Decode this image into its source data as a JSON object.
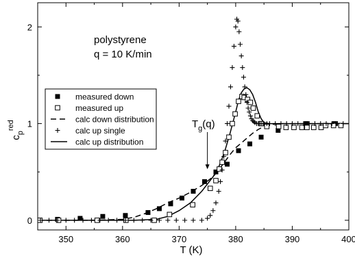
{
  "chart_data": {
    "type": "scatter",
    "title": "",
    "annotation": {
      "line1": "polystyrene",
      "line2": "q = 10 K/min"
    },
    "marker_label": {
      "main": "T",
      "sub": "g",
      "rest": "(q)",
      "x": 375,
      "y": 0.5
    },
    "xlabel": "T (K)",
    "ylabel": {
      "main": "c",
      "sub": "p",
      "sup": "red"
    },
    "xlim": [
      345,
      400
    ],
    "ylim": [
      -0.1,
      2.25
    ],
    "xticks": [
      350,
      360,
      370,
      380,
      390,
      400
    ],
    "yticks": [
      0,
      1,
      2
    ],
    "grid": false,
    "legend_position": "middle-left",
    "series": [
      {
        "name": "measured down",
        "style": "filled-square",
        "x": [
          345.4,
          348.5,
          352.5,
          356.5,
          360.5,
          364.5,
          366.5,
          368.5,
          370.5,
          372.5,
          374.5,
          376.5,
          378.5,
          380.5,
          382.5,
          384.5,
          387.5,
          392.5,
          397.5
        ],
        "y": [
          0.0,
          0.01,
          0.02,
          0.04,
          0.05,
          0.08,
          0.12,
          0.17,
          0.23,
          0.3,
          0.4,
          0.5,
          0.58,
          0.72,
          0.79,
          0.86,
          0.93,
          1.0,
          1.0
        ]
      },
      {
        "name": "measured up",
        "style": "open-square",
        "x": [
          345.4,
          348.7,
          355.5,
          360.6,
          365.6,
          368.3,
          372.4,
          375.5,
          376.5,
          377.1,
          377.6,
          378.2,
          378.8,
          379.4,
          379.9,
          380.5,
          381.1,
          381.5,
          382.1,
          382.6,
          383.1,
          383.8,
          384.5,
          385.5,
          387.6,
          388.9,
          390.3,
          391.7,
          392.6,
          393.8,
          395.1,
          395.9,
          397.3,
          398.6
        ],
        "y": [
          0.0,
          0.0,
          0.0,
          0.0,
          0.0,
          0.06,
          0.16,
          0.33,
          0.41,
          0.53,
          0.6,
          0.7,
          0.86,
          1.0,
          1.1,
          1.23,
          1.28,
          1.27,
          1.25,
          1.22,
          1.16,
          1.08,
          1.0,
          0.97,
          0.97,
          0.96,
          0.96,
          0.96,
          0.96,
          0.96,
          0.96,
          0.98,
          0.98,
          0.98
        ]
      },
      {
        "name": "calc down distribution",
        "style": "dashed-line",
        "x": [
          345,
          350,
          355,
          360,
          362,
          364,
          366,
          368,
          370,
          372,
          374,
          376,
          377,
          378,
          379,
          380,
          381,
          382,
          383,
          384,
          385,
          386,
          388,
          390,
          395,
          400
        ],
        "y": [
          0,
          0,
          0,
          0.01,
          0.03,
          0.07,
          0.12,
          0.18,
          0.23,
          0.29,
          0.36,
          0.45,
          0.52,
          0.6,
          0.68,
          0.75,
          0.8,
          0.85,
          0.9,
          0.94,
          0.97,
          0.99,
          1.0,
          1.0,
          1.0,
          1.0
        ]
      },
      {
        "name": "calc up single",
        "style": "plus",
        "x": [
          345.5,
          347,
          348.5,
          350,
          351.5,
          353,
          354.5,
          356,
          357.5,
          359,
          360.5,
          362,
          363.5,
          365,
          366.5,
          368,
          369.5,
          371,
          372.5,
          374,
          375,
          375.5,
          376,
          376.5,
          377,
          377.3,
          377.6,
          377.9,
          378.2,
          378.5,
          378.8,
          379.1,
          379.4,
          379.7,
          380,
          380.2,
          380.4,
          380.6,
          380.8,
          381,
          381.2,
          381.4,
          381.6,
          381.8,
          382,
          382.2,
          382.4,
          382.6,
          382.8,
          383,
          383.2,
          383.4,
          383.7,
          384,
          384.3,
          384.6,
          385,
          385.5,
          386,
          387,
          388,
          389,
          390,
          391,
          392,
          393,
          394,
          395,
          396,
          397,
          398,
          399
        ],
        "y": [
          0,
          0,
          0,
          0,
          0,
          0,
          0,
          0,
          0,
          0,
          0,
          0,
          0,
          0,
          0,
          0,
          0,
          0,
          0,
          0,
          0.02,
          0.05,
          0.1,
          0.18,
          0.3,
          0.4,
          0.52,
          0.66,
          0.82,
          1.0,
          1.18,
          1.38,
          1.58,
          1.8,
          2.0,
          2.08,
          2.06,
          1.95,
          1.82,
          1.7,
          1.58,
          1.48,
          1.38,
          1.3,
          1.22,
          1.16,
          1.12,
          1.08,
          1.05,
          1.03,
          1.02,
          1.01,
          1.0,
          1.0,
          1.0,
          1.0,
          1.0,
          1.0,
          1.0,
          1.0,
          1.0,
          1.0,
          1.0,
          1.0,
          1.0,
          1.0,
          1.0,
          1.0,
          1.0,
          1.0,
          1.0,
          1.0
        ]
      },
      {
        "name": "calc up distribution",
        "style": "solid-line",
        "x": [
          345,
          355,
          362,
          366,
          368,
          370,
          372,
          374,
          376,
          377,
          378,
          379,
          380,
          380.5,
          381,
          381.5,
          382,
          382.5,
          383,
          383.5,
          384,
          384.5,
          385,
          386,
          387,
          390,
          395,
          400
        ],
        "y": [
          0,
          0,
          0,
          0.01,
          0.04,
          0.1,
          0.18,
          0.3,
          0.45,
          0.55,
          0.7,
          0.9,
          1.12,
          1.24,
          1.32,
          1.36,
          1.37,
          1.35,
          1.3,
          1.22,
          1.12,
          1.05,
          1.01,
          1.0,
          1.0,
          1.0,
          1.0,
          1.0
        ]
      }
    ]
  }
}
